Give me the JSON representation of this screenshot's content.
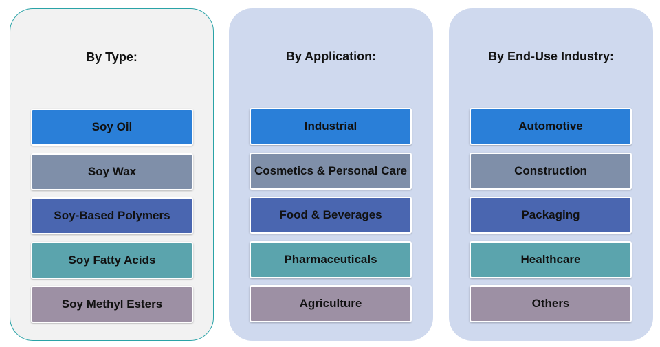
{
  "panels": [
    {
      "title": "By Type:",
      "items": [
        "Soy Oil",
        "Soy Wax",
        "Soy-Based Polymers",
        "Soy Fatty Acids",
        "Soy Methyl Esters"
      ]
    },
    {
      "title": "By Application:",
      "items": [
        "Industrial",
        "Cosmetics & Personal Care",
        "Food & Beverages",
        "Pharmaceuticals",
        "Agriculture"
      ]
    },
    {
      "title": "By End-Use Industry:",
      "items": [
        "Automotive",
        "Construction",
        "Packaging",
        "Healthcare",
        "Others"
      ]
    }
  ],
  "colors": {
    "panel_type_bg": "#f2f2f2",
    "panel_type_border": "#2aa3a7",
    "panel_other_bg": "#cfd9ee",
    "item_colors": [
      "#2a7fd8",
      "#7f8fa9",
      "#4a66b0",
      "#5ba4ad",
      "#9d90a4"
    ]
  }
}
